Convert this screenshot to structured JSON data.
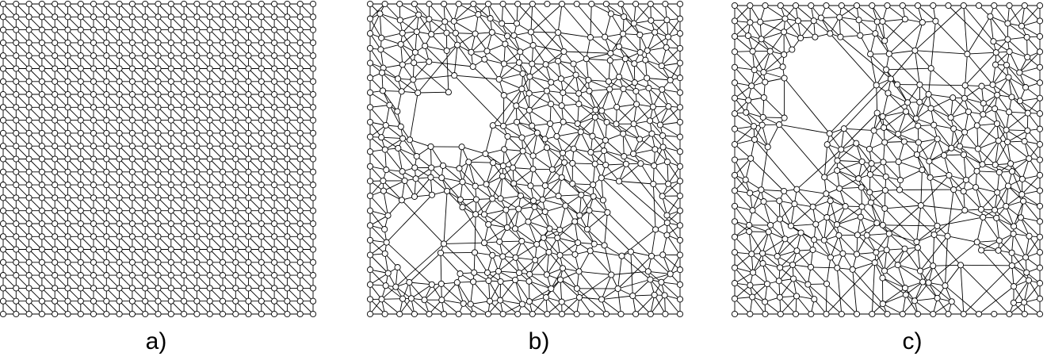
{
  "figure": {
    "panels": [
      {
        "label": "a)",
        "kind": "regular-triangular-mesh"
      },
      {
        "label": "b)",
        "kind": "adapted-mesh-variant-1"
      },
      {
        "label": "c)",
        "kind": "adapted-mesh-variant-2"
      }
    ]
  },
  "colors": {
    "edge": "#000000",
    "node_fill": "#ffffff",
    "node_stroke": "#000000",
    "background": "#ffffff"
  }
}
